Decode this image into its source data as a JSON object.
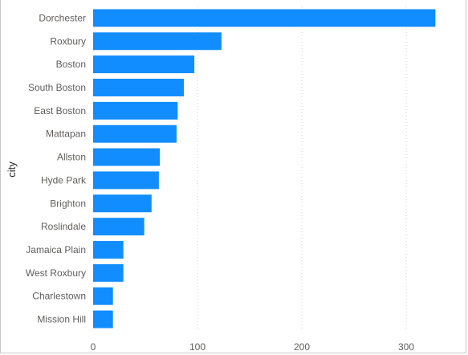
{
  "chart_data": {
    "type": "bar",
    "orientation": "horizontal",
    "ylabel": "city",
    "xlabel": "",
    "categories": [
      "Dorchester",
      "Roxbury",
      "Boston",
      "South Boston",
      "East Boston",
      "Mattapan",
      "Allston",
      "Hyde Park",
      "Brighton",
      "Roslindale",
      "Jamaica Plain",
      "West Roxbury",
      "Charlestown",
      "Mission Hill"
    ],
    "values": [
      328,
      123,
      97,
      87,
      81,
      80,
      64,
      63,
      56,
      49,
      29,
      29,
      19,
      19
    ],
    "xlim": [
      0,
      340
    ],
    "xticks": [
      "0",
      "100",
      "200",
      "300"
    ],
    "grid": true,
    "bar_color": "#118dff"
  }
}
